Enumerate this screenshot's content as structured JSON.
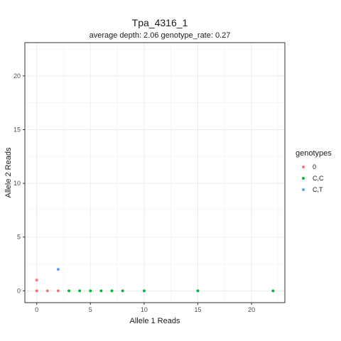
{
  "chart_data": {
    "type": "scatter",
    "title": "Tpa_4316_1",
    "subtitle": "average depth:  2.06  genotype_rate:  0.27",
    "xlabel": "Allele 1 Reads",
    "ylabel": "Allele 2 Reads",
    "xlim": [
      -1.1,
      23.1
    ],
    "ylim": [
      -1.1,
      23.1
    ],
    "xticks": [
      0,
      5,
      10,
      15,
      20
    ],
    "yticks": [
      0,
      5,
      10,
      15,
      20
    ],
    "grid": true,
    "legend": {
      "title": "genotypes",
      "placement": "right"
    },
    "series": [
      {
        "name": "0",
        "color": "#F8766D",
        "points": [
          [
            0,
            0
          ],
          [
            0,
            1
          ],
          [
            1,
            0
          ],
          [
            2,
            0
          ]
        ]
      },
      {
        "name": "C,C",
        "color": "#00BA38",
        "points": [
          [
            3,
            0
          ],
          [
            4,
            0
          ],
          [
            5,
            0
          ],
          [
            6,
            0
          ],
          [
            7,
            0
          ],
          [
            8,
            0
          ],
          [
            10,
            0
          ],
          [
            15,
            0
          ],
          [
            22,
            0
          ]
        ]
      },
      {
        "name": "C,T",
        "color": "#619CFF",
        "points": [
          [
            2,
            2
          ]
        ]
      }
    ]
  }
}
